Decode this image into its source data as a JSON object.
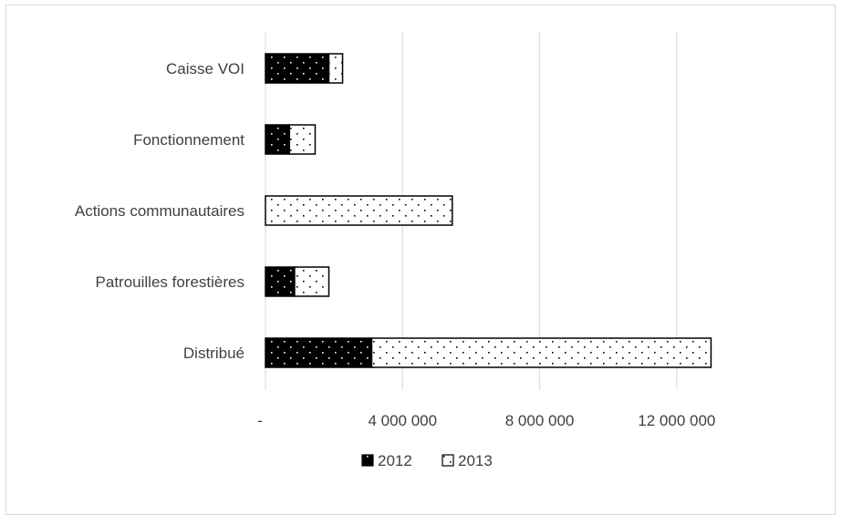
{
  "chart_data": {
    "type": "bar",
    "orientation": "horizontal",
    "stacked": true,
    "categories": [
      "Distribué",
      "Patrouilles forestières",
      "Actions communautaires",
      "Fonctionnement",
      "Caisse VOI"
    ],
    "series": [
      {
        "name": "2012",
        "values": [
          3100000,
          850000,
          0,
          700000,
          1850000
        ],
        "color": "#000000",
        "pattern": "dots-white-on-black"
      },
      {
        "name": "2013",
        "values": [
          9900000,
          1000000,
          5450000,
          750000,
          400000
        ],
        "color": "#ffffff",
        "pattern": "dots-black-on-white"
      }
    ],
    "xlim": [
      0,
      14000000
    ],
    "xticks": [
      0,
      4000000,
      8000000,
      12000000
    ],
    "xtick_labels": [
      "-",
      "4 000 000",
      "8 000 000",
      "12 000 000"
    ],
    "grid": true,
    "legend_position": "bottom",
    "title": "",
    "xlabel": "",
    "ylabel": ""
  },
  "colors": {
    "gridline": "#d9d9d9",
    "text": "#404040",
    "bar_outline": "#000000"
  }
}
